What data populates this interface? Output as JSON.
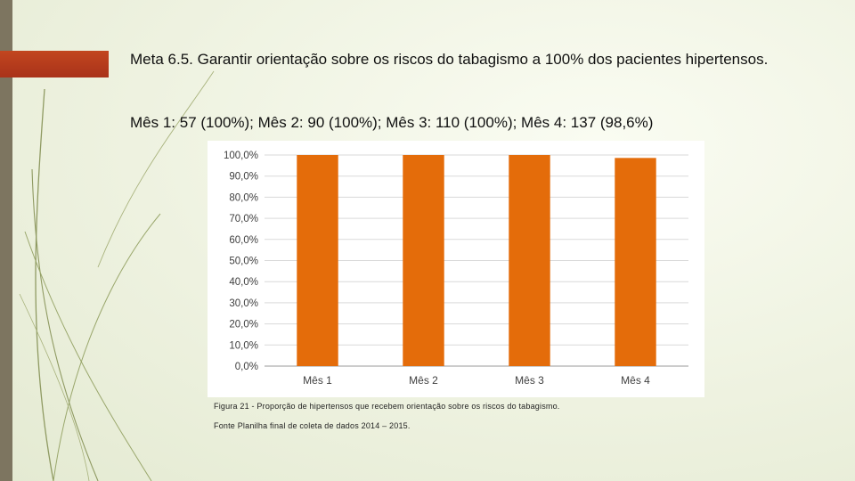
{
  "slide": {
    "heading": "Meta 6.5. Garantir orientação sobre os riscos do tabagismo a 100% dos pacientes hipertensos.",
    "subheading": "Mês 1: 57 (100%); Mês 2: 90 (100%); Mês 3: 110 (100%); Mês 4: 137 (98,6%)",
    "caption": "Figura 21 - Proporção de hipertensos que recebem orientação sobre os riscos do tabagismo.",
    "source": "Fonte Planilha final de coleta de dados 2014 – 2015."
  },
  "colors": {
    "accent": "#b33a1c",
    "bar": "#e46c0a",
    "band": "#7d7560"
  },
  "chart_data": {
    "type": "bar",
    "categories": [
      "Mês 1",
      "Mês 2",
      "Mês 3",
      "Mês 4"
    ],
    "values": [
      100.0,
      100.0,
      100.0,
      98.6
    ],
    "yticks": [
      "0,0%",
      "10,0%",
      "20,0%",
      "30,0%",
      "40,0%",
      "50,0%",
      "60,0%",
      "70,0%",
      "80,0%",
      "90,0%",
      "100,0%"
    ],
    "ylim": [
      0,
      100
    ],
    "grid": true,
    "legend": "none"
  }
}
